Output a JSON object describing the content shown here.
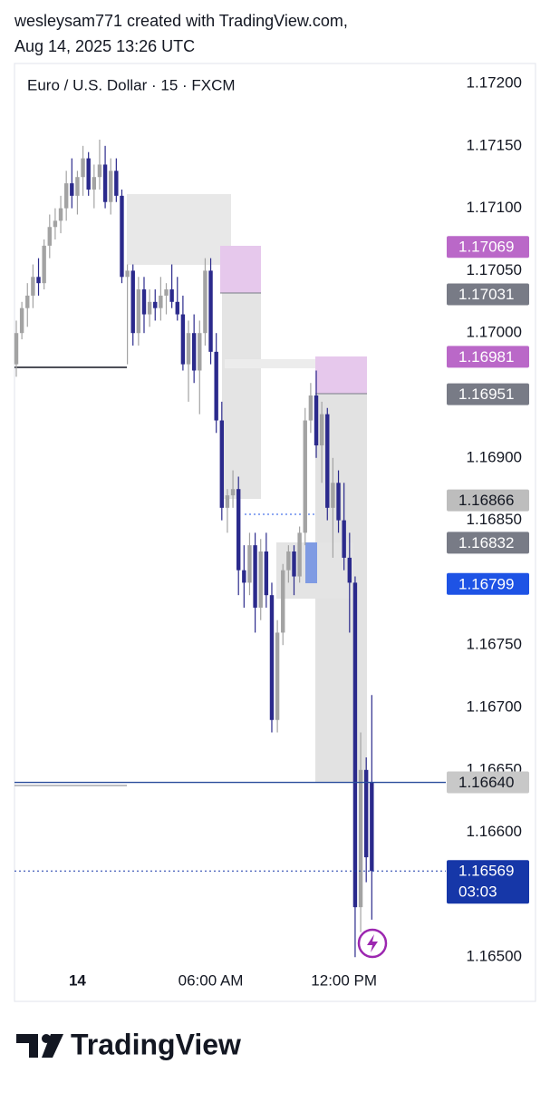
{
  "header": {
    "line1": "wesleysam771 created with TradingView.com,",
    "line2": "Aug 14, 2025 13:26 UTC"
  },
  "chart_data": {
    "type": "candlestick",
    "title": "Euro / U.S. Dollar · 15 · FXCM",
    "up_color": "#a3a3a3",
    "down_color": "#2b2a8c",
    "categories": [
      null,
      null,
      null,
      null,
      null,
      null,
      null,
      null,
      null,
      null,
      null,
      "14",
      null,
      null,
      null,
      null,
      null,
      null,
      null,
      null,
      null,
      null,
      null,
      null,
      null,
      null,
      null,
      null,
      null,
      null,
      null,
      null,
      null,
      null,
      null,
      "06:00 AM",
      null,
      null,
      null,
      null,
      null,
      null,
      null,
      null,
      null,
      null,
      null,
      null,
      null,
      null,
      null,
      null,
      null,
      null,
      null,
      null,
      null,
      null,
      null,
      "12:00 PM",
      null,
      null,
      null,
      null,
      null
    ],
    "open": [
      1.16975,
      1.17,
      1.1702,
      1.1703,
      1.17045,
      1.1704,
      1.1707,
      1.17085,
      1.1709,
      1.171,
      1.1712,
      1.1711,
      1.17125,
      1.1714,
      1.17115,
      1.17125,
      1.17135,
      1.17105,
      1.1713,
      1.1711,
      1.17045,
      1.1705,
      1.17,
      1.17035,
      1.17015,
      1.17025,
      1.1702,
      1.1703,
      1.17035,
      1.17025,
      1.17015,
      1.16975,
      1.17,
      1.1697,
      1.17,
      1.1705,
      1.16985,
      1.1693,
      1.1686,
      1.1687,
      1.16875,
      1.1681,
      1.168,
      1.1683,
      1.1678,
      1.16825,
      1.1679,
      1.1669,
      1.1676,
      1.1681,
      1.16825,
      1.16805,
      1.1684,
      1.1693,
      1.1695,
      1.1691,
      1.16935,
      1.1686,
      1.1688,
      1.1685,
      1.1682,
      1.168,
      1.1654,
      1.1665,
      1.1664
    ],
    "high": [
      1.1701,
      1.17025,
      1.1704,
      1.17055,
      1.1706,
      1.17075,
      1.17095,
      1.171,
      1.1711,
      1.1713,
      1.1714,
      1.1713,
      1.1715,
      1.17145,
      1.17135,
      1.17155,
      1.1715,
      1.1714,
      1.1714,
      1.17115,
      1.17055,
      1.17055,
      1.17045,
      1.17045,
      1.17035,
      1.17035,
      1.17045,
      1.1704,
      1.17055,
      1.17045,
      1.1703,
      1.1701,
      1.17015,
      1.1701,
      1.1706,
      1.1706,
      1.17,
      1.16945,
      1.16875,
      1.1689,
      1.16885,
      1.1683,
      1.1684,
      1.1684,
      1.16835,
      1.1684,
      1.168,
      1.1677,
      1.16815,
      1.1683,
      1.1683,
      1.16845,
      1.1694,
      1.1696,
      1.1697,
      1.16945,
      1.1694,
      1.169,
      1.1689,
      1.1688,
      1.1684,
      1.16805,
      1.1668,
      1.1666,
      1.1671
    ],
    "low": [
      1.16965,
      1.16995,
      1.17005,
      1.1702,
      1.1703,
      1.17035,
      1.1706,
      1.17075,
      1.1708,
      1.1709,
      1.171,
      1.17095,
      1.1711,
      1.1711,
      1.171,
      1.17115,
      1.171,
      1.17095,
      1.17105,
      1.1704,
      1.16975,
      1.1699,
      1.1699,
      1.17,
      1.17005,
      1.1701,
      1.1701,
      1.17015,
      1.1702,
      1.1701,
      1.1697,
      1.16945,
      1.1696,
      1.16935,
      1.1699,
      1.16975,
      1.1692,
      1.1685,
      1.1684,
      1.1686,
      1.1679,
      1.1678,
      1.1679,
      1.1676,
      1.1677,
      1.1678,
      1.1668,
      1.1668,
      1.1675,
      1.168,
      1.1679,
      1.168,
      1.1683,
      1.1692,
      1.169,
      1.1688,
      1.1685,
      1.1682,
      1.1684,
      1.1681,
      1.1676,
      1.165,
      1.1652,
      1.1656,
      1.1653
    ],
    "close": [
      1.17,
      1.1702,
      1.1703,
      1.17045,
      1.1704,
      1.1707,
      1.17085,
      1.1709,
      1.171,
      1.1712,
      1.1711,
      1.17125,
      1.1714,
      1.17115,
      1.17125,
      1.17135,
      1.17105,
      1.1713,
      1.1711,
      1.17045,
      1.1705,
      1.17,
      1.17035,
      1.17015,
      1.17025,
      1.1702,
      1.1703,
      1.17035,
      1.17025,
      1.17015,
      1.16975,
      1.17,
      1.1697,
      1.17,
      1.1705,
      1.16985,
      1.1693,
      1.1686,
      1.1687,
      1.16875,
      1.1681,
      1.168,
      1.1683,
      1.1678,
      1.16825,
      1.1679,
      1.1669,
      1.1676,
      1.1681,
      1.16825,
      1.16805,
      1.1684,
      1.1693,
      1.1695,
      1.1691,
      1.16935,
      1.1686,
      1.1688,
      1.1685,
      1.1682,
      1.168,
      1.1654,
      1.1665,
      1.1658,
      1.16569
    ],
    "ylim": [
      1.16496,
      1.17212
    ],
    "yticks": [
      {
        "value": 1.172,
        "label": "1.17200"
      },
      {
        "value": 1.1715,
        "label": "1.17150"
      },
      {
        "value": 1.171,
        "label": "1.17100"
      },
      {
        "value": 1.1705,
        "label": "1.17050"
      },
      {
        "value": 1.17,
        "label": "1.17000"
      },
      {
        "value": 1.169,
        "label": "1.16900"
      },
      {
        "value": 1.1685,
        "label": "1.16850"
      },
      {
        "value": 1.1675,
        "label": "1.16750"
      },
      {
        "value": 1.167,
        "label": "1.16700"
      },
      {
        "value": 1.1665,
        "label": "1.16650"
      },
      {
        "value": 1.166,
        "label": "1.16600"
      },
      {
        "value": 1.165,
        "label": "1.16500"
      }
    ],
    "price_tags": [
      {
        "value": 1.17069,
        "label": "1.17069",
        "color": "#ba68c8",
        "text_color": "#ffffff"
      },
      {
        "value": 1.17031,
        "label": "1.17031",
        "color": "#787b86",
        "text_color": "#ffffff"
      },
      {
        "value": 1.16981,
        "label": "1.16981",
        "color": "#ba68c8",
        "text_color": "#ffffff"
      },
      {
        "value": 1.16951,
        "label": "1.16951",
        "color": "#787b86",
        "text_color": "#ffffff"
      },
      {
        "value": 1.16866,
        "label": "1.16866",
        "color": "#bdbdbd",
        "text_color": "#131722"
      },
      {
        "value": 1.16832,
        "label": "1.16832",
        "color": "#787b86",
        "text_color": "#ffffff"
      },
      {
        "value": 1.16799,
        "label": "1.16799",
        "color": "#1e53e5",
        "text_color": "#ffffff"
      },
      {
        "value": 1.1664,
        "label": "1.16640",
        "color": "#c8c8c8",
        "text_color": "#131722"
      },
      {
        "value": 1.16569,
        "label": "1.16569",
        "color": "#1637a8",
        "text_color": "#ffffff"
      }
    ],
    "countdown": "03:03"
  },
  "footer": {
    "brand": "TradingView"
  }
}
